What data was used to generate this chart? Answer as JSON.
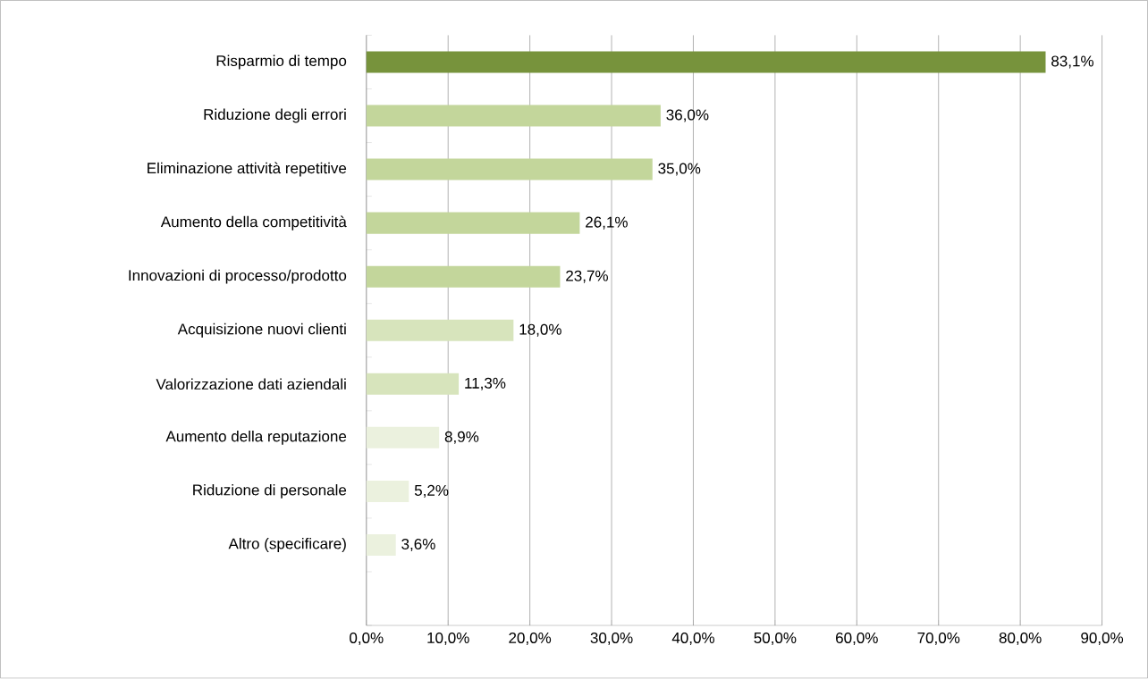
{
  "chart_data": {
    "type": "bar",
    "orientation": "horizontal",
    "categories": [
      "Risparmio di tempo",
      "Riduzione degli errori",
      "Eliminazione attività repetitive",
      "Aumento della competitività",
      "Innovazioni di processo/prodotto",
      "Acquisizione nuovi clienti",
      "Valorizzazione dati aziendali",
      "Aumento della reputazione",
      "Riduzione di personale",
      "Altro (specificare)"
    ],
    "values": [
      83.1,
      36.0,
      35.0,
      26.1,
      23.7,
      18.0,
      11.3,
      8.9,
      5.2,
      3.6
    ],
    "value_labels": [
      "83,1%",
      "36,0%",
      "35,0%",
      "26,1%",
      "23,7%",
      "18,0%",
      "11,3%",
      "8,9%",
      "5,2%",
      "3,6%"
    ],
    "colors": [
      "#77933c",
      "#c3d69b",
      "#c3d69b",
      "#c3d69b",
      "#c3d69b",
      "#d7e4bc",
      "#d7e4bc",
      "#ebf1de",
      "#ebf1de",
      "#ebf1de"
    ],
    "xlim": [
      0,
      90
    ],
    "xticks": [
      {
        "value": 0,
        "label": "0,0%"
      },
      {
        "value": 10,
        "label": "10,0%"
      },
      {
        "value": 20,
        "label": "20,0%"
      },
      {
        "value": 30,
        "label": "30,0%"
      },
      {
        "value": 40,
        "label": "40,0%"
      },
      {
        "value": 50,
        "label": "50,0%"
      },
      {
        "value": 60,
        "label": "60,0%"
      },
      {
        "value": 70,
        "label": "70,0%"
      },
      {
        "value": 80,
        "label": "80,0%"
      },
      {
        "value": 90,
        "label": "90,0%"
      }
    ],
    "grid": "x"
  }
}
